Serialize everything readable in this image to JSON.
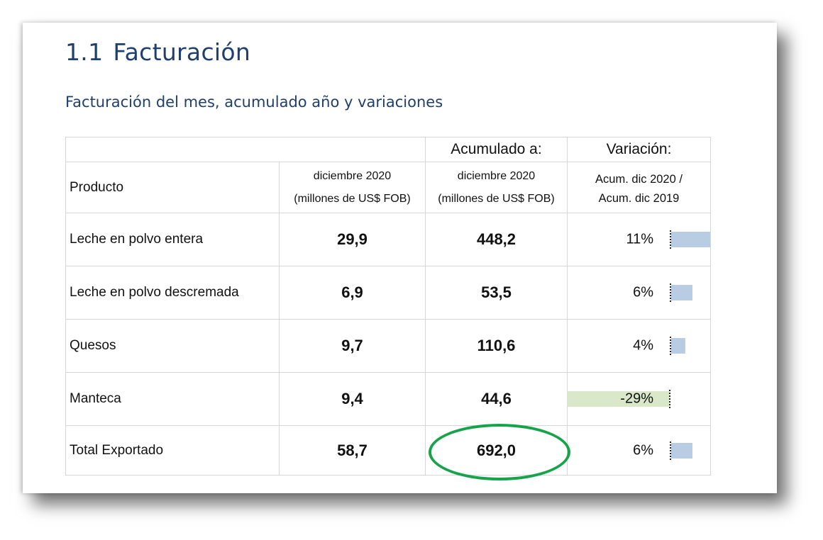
{
  "section": {
    "number": "1.1",
    "title": "Facturación"
  },
  "subtitle": "Facturación del mes, acumulado año y variaciones",
  "table": {
    "top_headers": {
      "accumulated": "Acumulado a:",
      "variation": "Variación:"
    },
    "headers": {
      "product": "Producto",
      "month_line1": "diciembre 2020",
      "month_line2": "(millones de US$ FOB)",
      "acc_line1": "diciembre 2020",
      "acc_line2": "(millones de US$ FOB)",
      "var_line1": "Acum. dic 2020 /",
      "var_line2": "Acum. dic 2019"
    },
    "rows": [
      {
        "product": "Leche en polvo entera",
        "month": "29,9",
        "accumulated": "448,2",
        "variation": "11%",
        "variation_value": 0.11
      },
      {
        "product": "Leche en polvo descremada",
        "month": "6,9",
        "accumulated": "53,5",
        "variation": "6%",
        "variation_value": 0.06
      },
      {
        "product": "Quesos",
        "month": "9,7",
        "accumulated": "110,6",
        "variation": "4%",
        "variation_value": 0.04
      },
      {
        "product": "Manteca",
        "month": "9,4",
        "accumulated": "44,6",
        "variation": "-29%",
        "variation_value": -0.29
      }
    ],
    "total": {
      "product": "Total Exportado",
      "month": "58,7",
      "accumulated": "692,0",
      "variation": "6%",
      "variation_value": 0.06
    }
  },
  "colors": {
    "heading": "#1f3f6e",
    "month_values": "#7cc142",
    "accumulated_values": "#2f5c8f",
    "positive_bar": "#b8cce4",
    "negative_bar": "#d8e8c8",
    "highlight_ring": "#16a34a"
  }
}
